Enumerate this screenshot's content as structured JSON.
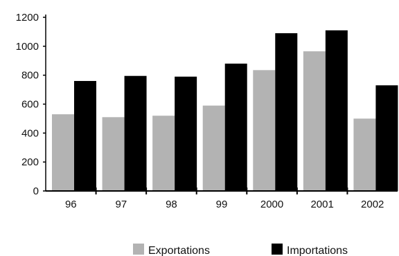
{
  "chart_data": {
    "type": "bar",
    "title": "",
    "xlabel": "",
    "ylabel": "",
    "categories": [
      "96",
      "97",
      "98",
      "99",
      "2000",
      "2001",
      "2002"
    ],
    "ylim": [
      0,
      1200
    ],
    "yticks": [
      0,
      200,
      400,
      600,
      800,
      1000,
      1200
    ],
    "grid": false,
    "legend_position": "bottom",
    "series": [
      {
        "name": "Exportations",
        "color": "#b3b3b3",
        "values": [
          530,
          510,
          520,
          590,
          835,
          965,
          500
        ]
      },
      {
        "name": "Importations",
        "color": "#000000",
        "values": [
          760,
          795,
          790,
          880,
          1090,
          1110,
          730
        ]
      }
    ]
  }
}
